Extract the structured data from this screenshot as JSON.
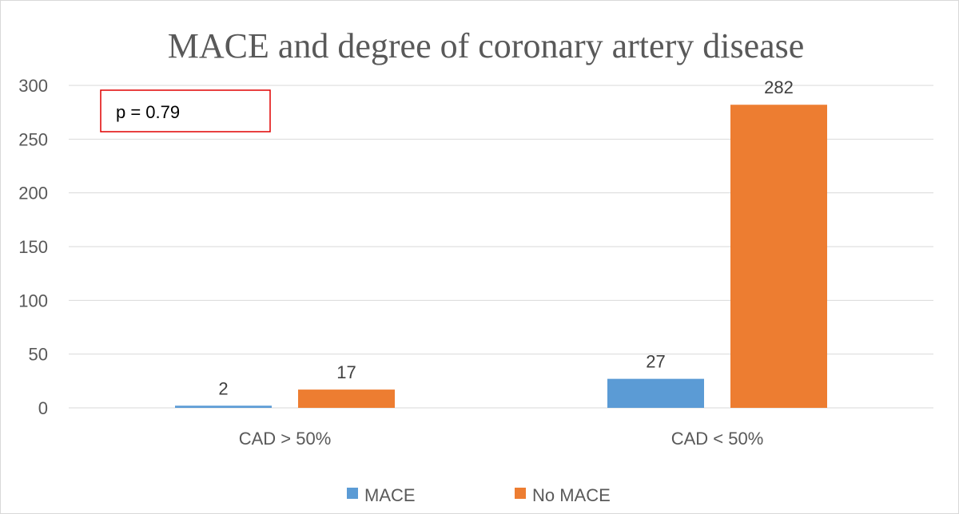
{
  "chart_data": {
    "type": "bar",
    "title": "MACE and degree of coronary artery disease",
    "categories": [
      "CAD > 50%",
      "CAD < 50%"
    ],
    "series": [
      {
        "name": "MACE",
        "values": [
          2,
          27
        ],
        "color": "#5B9BD5"
      },
      {
        "name": "No MACE",
        "values": [
          17,
          282
        ],
        "color": "#ED7D31"
      }
    ],
    "ylim": [
      0,
      300
    ],
    "yticks": [
      0,
      50,
      100,
      150,
      200,
      250,
      300
    ],
    "grid": true,
    "legend": "bottom",
    "annotation": {
      "text": "p = 0.79",
      "border_color": "#E00000"
    },
    "axis_color": "#D9D9D9",
    "grid_color": "#D9D9D9"
  }
}
